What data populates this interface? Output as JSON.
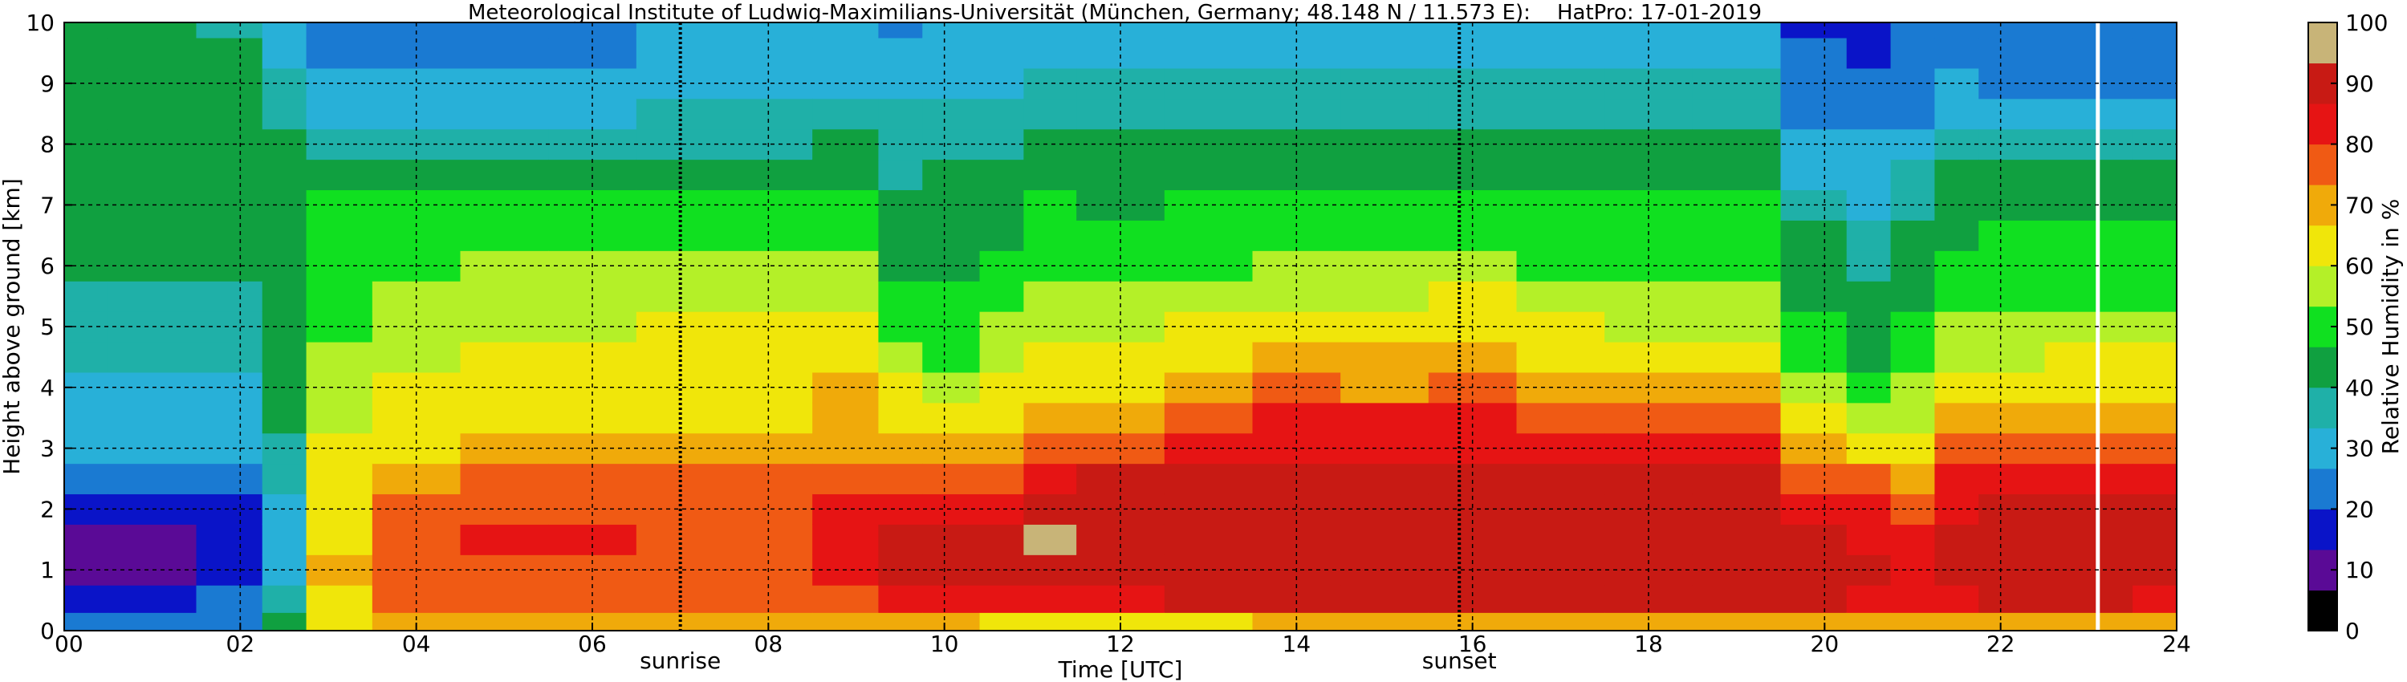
{
  "chart_data": {
    "type": "heatmap",
    "title": "Meteorological Institute of Ludwig-Maximilians-Universität (München, Germany; 48.148 N / 11.573 E):    HatPro: 17-01-2019",
    "xlabel": "Time [UTC]",
    "ylabel": "Height above ground [km]",
    "xlim": [
      0,
      24
    ],
    "ylim": [
      0,
      10
    ],
    "x_ticks": [
      0,
      2,
      4,
      6,
      8,
      10,
      12,
      14,
      16,
      18,
      20,
      22,
      24
    ],
    "x_tick_labels": [
      "00",
      "02",
      "04",
      "06",
      "08",
      "10",
      "12",
      "14",
      "16",
      "18",
      "20",
      "22",
      "24"
    ],
    "y_ticks": [
      0,
      1,
      2,
      3,
      4,
      5,
      6,
      7,
      8,
      9,
      10
    ],
    "y_tick_labels": [
      "0",
      "1",
      "2",
      "3",
      "4",
      "5",
      "6",
      "7",
      "8",
      "9",
      "10"
    ],
    "grid": true,
    "annotations": [
      {
        "text": "sunrise",
        "x": 7.0
      },
      {
        "text": "sunset",
        "x": 15.85
      }
    ],
    "colorbar": {
      "label": "Relative Humidity in %",
      "range": [
        0,
        100
      ],
      "ticks": [
        0,
        10,
        20,
        30,
        40,
        50,
        60,
        70,
        80,
        90,
        100
      ],
      "tick_labels": [
        "0",
        "10",
        "20",
        "30",
        "40",
        "50",
        "60",
        "70",
        "80",
        "90",
        "100"
      ],
      "colors": [
        "#000000",
        "#5a0a96",
        "#0a14c8",
        "#1a7ad2",
        "#28b0d8",
        "#1fb0a8",
        "#10a040",
        "#10e020",
        "#b4f028",
        "#f0e60a",
        "#f0aa0a",
        "#f05a14",
        "#e61414",
        "#c81a14",
        "#c8b478"
      ]
    },
    "missing_data_time": 23.1,
    "heights_km": [
      0.1,
      0.5,
      1.0,
      1.5,
      2.0,
      2.5,
      3.0,
      3.5,
      4.0,
      4.5,
      5.0,
      5.5,
      6.0,
      6.5,
      7.0,
      7.5,
      8.0,
      8.5,
      9.0,
      9.5,
      10.0
    ],
    "profile_times_utc": [
      0,
      1,
      2,
      2.5,
      3,
      4,
      5,
      6,
      7,
      8,
      9,
      9.5,
      10,
      10.8,
      11,
      12,
      13,
      14,
      15,
      16,
      17,
      18,
      19,
      20,
      20.5,
      21,
      21.5,
      22,
      23,
      24
    ],
    "rh_percent_profiles": [
      [
        20,
        18,
        12,
        12,
        16,
        24,
        28,
        30,
        32,
        34,
        36,
        38,
        40,
        40,
        40,
        40,
        40,
        40,
        40,
        40,
        40
      ],
      [
        20,
        18,
        12,
        12,
        16,
        24,
        28,
        30,
        32,
        34,
        36,
        38,
        40,
        40,
        40,
        40,
        40,
        40,
        40,
        40,
        40
      ],
      [
        22,
        20,
        14,
        14,
        18,
        26,
        30,
        32,
        33,
        35,
        37,
        38,
        40,
        40,
        40,
        40,
        40,
        40,
        40,
        40,
        38
      ],
      [
        40,
        38,
        32,
        30,
        32,
        36,
        38,
        40,
        40,
        42,
        44,
        46,
        46,
        46,
        44,
        42,
        40,
        38,
        36,
        32,
        28
      ],
      [
        62,
        66,
        68,
        66,
        64,
        62,
        60,
        58,
        56,
        54,
        52,
        52,
        50,
        50,
        48,
        40,
        36,
        32,
        30,
        26,
        24
      ],
      [
        70,
        74,
        76,
        76,
        74,
        70,
        66,
        62,
        60,
        58,
        56,
        54,
        52,
        50,
        48,
        44,
        38,
        32,
        30,
        26,
        22
      ],
      [
        70,
        74,
        78,
        80,
        78,
        74,
        68,
        64,
        62,
        60,
        58,
        56,
        54,
        50,
        48,
        44,
        38,
        30,
        28,
        24,
        22
      ],
      [
        70,
        74,
        78,
        80,
        78,
        74,
        68,
        64,
        62,
        60,
        58,
        56,
        54,
        50,
        48,
        42,
        38,
        32,
        30,
        26,
        24
      ],
      [
        70,
        74,
        78,
        78,
        76,
        74,
        70,
        66,
        64,
        62,
        60,
        58,
        56,
        52,
        48,
        42,
        36,
        34,
        32,
        30,
        28
      ],
      [
        70,
        74,
        78,
        78,
        76,
        74,
        70,
        66,
        64,
        62,
        60,
        58,
        56,
        52,
        48,
        42,
        36,
        34,
        32,
        30,
        28
      ],
      [
        70,
        76,
        82,
        82,
        80,
        76,
        72,
        70,
        68,
        66,
        60,
        56,
        54,
        52,
        48,
        44,
        40,
        36,
        32,
        30,
        28
      ],
      [
        72,
        84,
        90,
        88,
        84,
        78,
        72,
        66,
        60,
        56,
        50,
        48,
        46,
        44,
        42,
        38,
        36,
        34,
        30,
        28,
        26
      ],
      [
        68,
        84,
        90,
        88,
        84,
        76,
        70,
        64,
        56,
        50,
        48,
        48,
        46,
        44,
        44,
        40,
        38,
        36,
        32,
        30,
        28
      ],
      [
        66,
        82,
        88,
        90,
        86,
        78,
        72,
        66,
        62,
        58,
        54,
        50,
        48,
        46,
        44,
        40,
        38,
        34,
        32,
        30,
        28
      ],
      [
        62,
        84,
        92,
        94,
        90,
        84,
        76,
        70,
        66,
        62,
        58,
        54,
        52,
        50,
        48,
        44,
        42,
        38,
        36,
        32,
        28
      ],
      [
        64,
        84,
        90,
        92,
        92,
        88,
        78,
        72,
        66,
        62,
        58,
        54,
        52,
        48,
        46,
        42,
        40,
        36,
        34,
        30,
        28
      ],
      [
        66,
        88,
        92,
        92,
        92,
        90,
        82,
        76,
        70,
        64,
        60,
        56,
        52,
        50,
        48,
        46,
        42,
        38,
        34,
        32,
        30
      ],
      [
        68,
        90,
        92,
        92,
        92,
        92,
        86,
        80,
        74,
        68,
        62,
        58,
        54,
        52,
        50,
        46,
        42,
        38,
        36,
        32,
        30
      ],
      [
        68,
        90,
        92,
        92,
        92,
        92,
        86,
        80,
        72,
        68,
        62,
        58,
        54,
        52,
        50,
        46,
        42,
        38,
        36,
        32,
        30
      ],
      [
        70,
        90,
        92,
        92,
        92,
        92,
        86,
        80,
        76,
        70,
        64,
        60,
        56,
        52,
        50,
        46,
        42,
        38,
        36,
        32,
        30
      ],
      [
        68,
        90,
        92,
        92,
        92,
        92,
        84,
        78,
        72,
        66,
        60,
        56,
        52,
        50,
        48,
        44,
        42,
        38,
        34,
        32,
        30
      ],
      [
        68,
        90,
        92,
        92,
        92,
        90,
        82,
        76,
        70,
        64,
        58,
        54,
        52,
        50,
        48,
        44,
        40,
        36,
        34,
        32,
        30
      ],
      [
        70,
        90,
        92,
        92,
        92,
        90,
        82,
        76,
        70,
        64,
        58,
        54,
        52,
        50,
        48,
        44,
        40,
        36,
        34,
        30,
        28
      ],
      [
        70,
        90,
        92,
        90,
        86,
        76,
        68,
        62,
        56,
        52,
        48,
        46,
        44,
        40,
        36,
        30,
        28,
        26,
        24,
        20,
        18
      ],
      [
        70,
        86,
        88,
        84,
        80,
        74,
        66,
        58,
        50,
        46,
        42,
        40,
        38,
        36,
        32,
        30,
        28,
        26,
        22,
        18,
        16
      ],
      [
        70,
        80,
        82,
        80,
        76,
        70,
        64,
        58,
        54,
        50,
        48,
        46,
        44,
        42,
        38,
        34,
        30,
        26,
        24,
        22,
        20
      ],
      [
        72,
        86,
        90,
        88,
        86,
        80,
        74,
        70,
        64,
        58,
        54,
        50,
        48,
        46,
        44,
        40,
        36,
        32,
        28,
        24,
        22
      ],
      [
        72,
        88,
        92,
        92,
        90,
        84,
        76,
        70,
        64,
        58,
        56,
        52,
        50,
        48,
        44,
        40,
        34,
        30,
        26,
        22,
        20
      ],
      [
        72,
        88,
        92,
        90,
        88,
        84,
        76,
        70,
        64,
        60,
        56,
        52,
        50,
        48,
        44,
        40,
        34,
        30,
        26,
        22,
        20
      ],
      [
        70,
        86,
        92,
        90,
        88,
        84,
        76,
        70,
        64,
        60,
        56,
        52,
        50,
        48,
        44,
        40,
        34,
        30,
        26,
        22,
        20
      ]
    ]
  }
}
